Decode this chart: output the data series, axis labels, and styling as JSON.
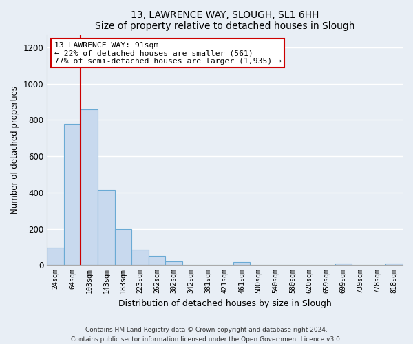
{
  "title": "13, LAWRENCE WAY, SLOUGH, SL1 6HH",
  "subtitle": "Size of property relative to detached houses in Slough",
  "xlabel": "Distribution of detached houses by size in Slough",
  "ylabel": "Number of detached properties",
  "bar_labels": [
    "24sqm",
    "64sqm",
    "103sqm",
    "143sqm",
    "183sqm",
    "223sqm",
    "262sqm",
    "302sqm",
    "342sqm",
    "381sqm",
    "421sqm",
    "461sqm",
    "500sqm",
    "540sqm",
    "580sqm",
    "620sqm",
    "659sqm",
    "699sqm",
    "739sqm",
    "778sqm",
    "818sqm"
  ],
  "bar_values": [
    95,
    780,
    860,
    415,
    200,
    85,
    50,
    20,
    0,
    0,
    0,
    15,
    0,
    0,
    0,
    0,
    0,
    10,
    0,
    0,
    10
  ],
  "bar_color": "#c8d9ee",
  "bar_edge_color": "#6aaad4",
  "vline_x": 1.5,
  "vline_color": "#cc0000",
  "annotation_line1": "13 LAWRENCE WAY: 91sqm",
  "annotation_line2": "← 22% of detached houses are smaller (561)",
  "annotation_line3": "77% of semi-detached houses are larger (1,935) →",
  "annotation_box_color": "#ffffff",
  "annotation_box_edge": "#cc0000",
  "ylim": [
    0,
    1270
  ],
  "yticks": [
    0,
    200,
    400,
    600,
    800,
    1000,
    1200
  ],
  "footer_line1": "Contains HM Land Registry data © Crown copyright and database right 2024.",
  "footer_line2": "Contains public sector information licensed under the Open Government Licence v3.0.",
  "background_color": "#e8eef5",
  "plot_bg_color": "#e8eef5",
  "grid_color": "#ffffff"
}
